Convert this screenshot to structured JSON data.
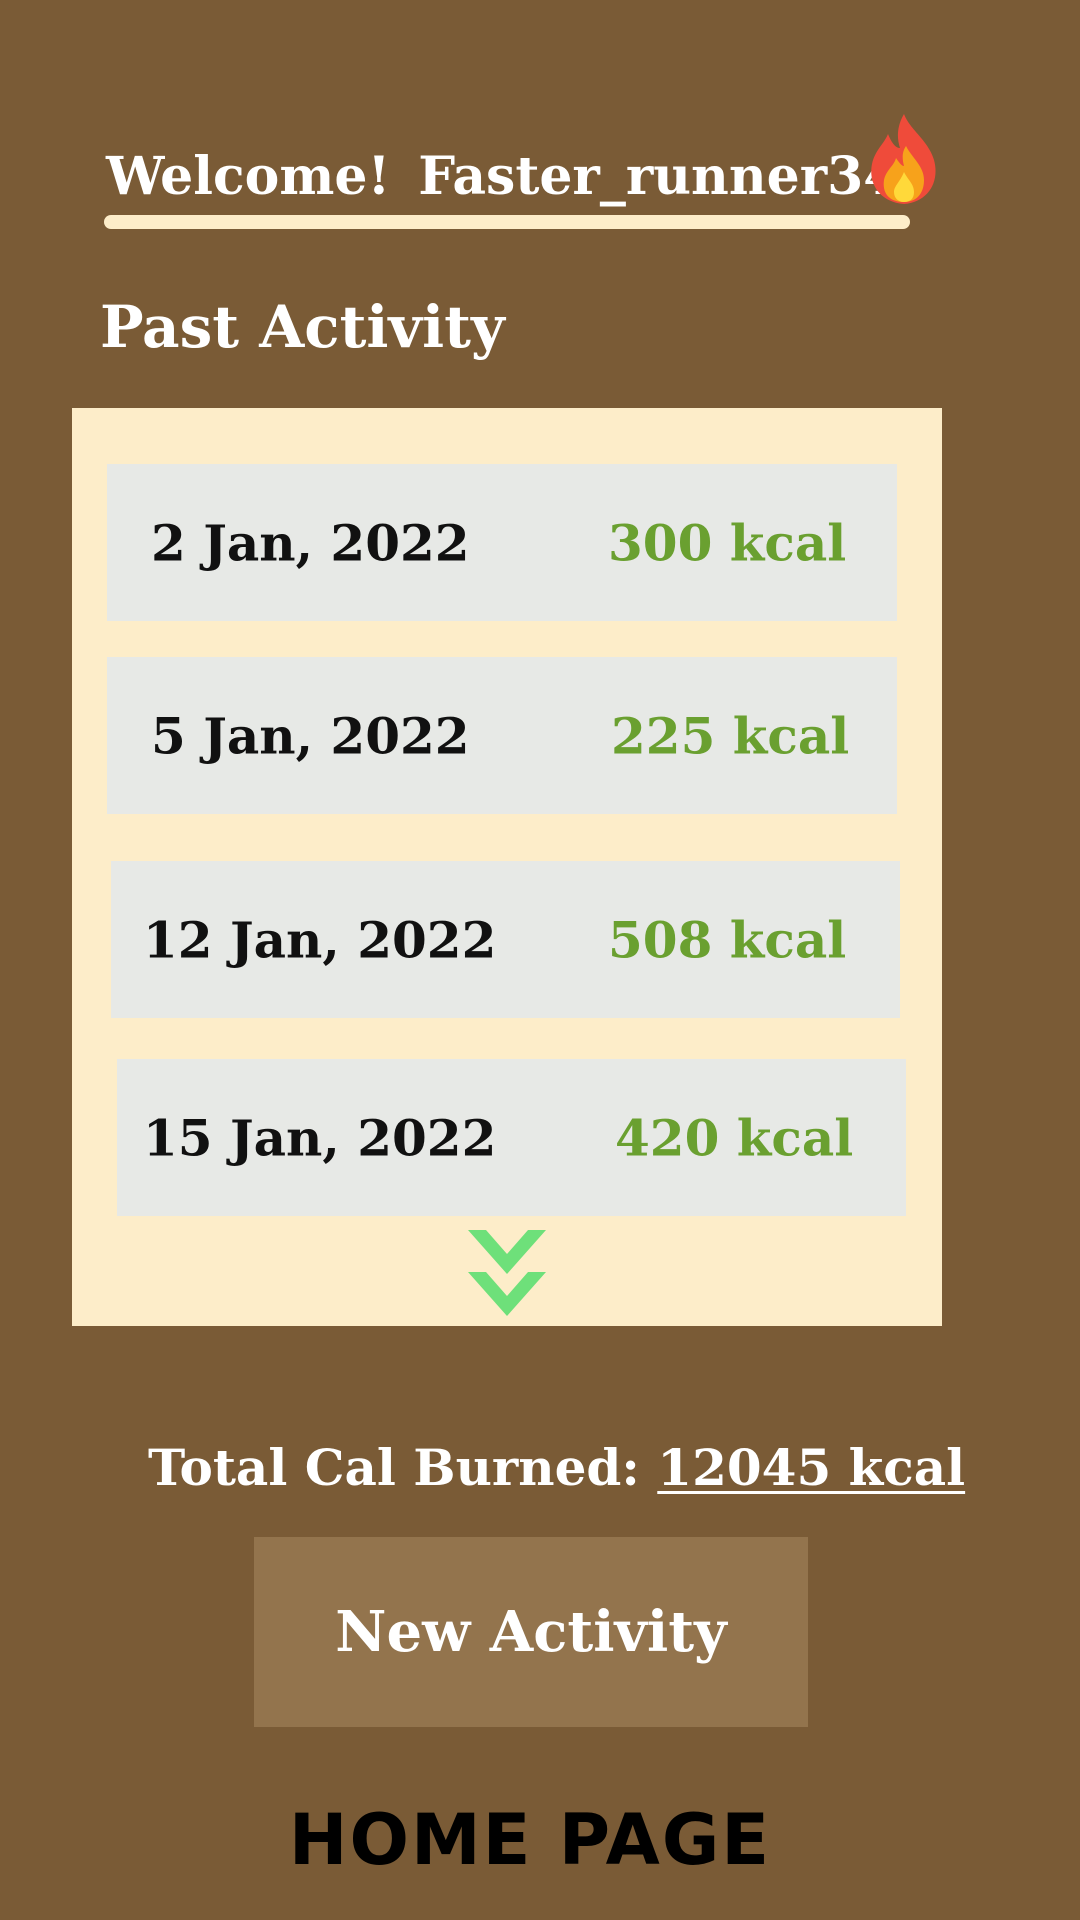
{
  "header": {
    "welcome_label": "Welcome!",
    "username": "Faster_runner345",
    "flame_icon": "fire-emoji"
  },
  "past_activity": {
    "title": "Past Activity",
    "entries": [
      {
        "date": "2 Jan, 2022",
        "calories": "300 kcal"
      },
      {
        "date": "5 Jan, 2022",
        "calories": "225 kcal"
      },
      {
        "date": "12 Jan, 2022",
        "calories": "508 kcal"
      },
      {
        "date": "15 Jan, 2022",
        "calories": "420 kcal"
      }
    ],
    "more_icon": "double-chevron-down-icon"
  },
  "summary": {
    "total_label": "Total Cal Burned:",
    "total_value": "12045 kcal"
  },
  "actions": {
    "new_activity_label": "New Activity"
  },
  "footer": {
    "page_label": "HOME PAGE"
  },
  "colors": {
    "background": "#7a5b36",
    "panel": "#fdedc9",
    "row": "#e7e9e6",
    "kcal_text": "#6aa030",
    "button": "#93744d",
    "arrow": "#6ee07a"
  }
}
